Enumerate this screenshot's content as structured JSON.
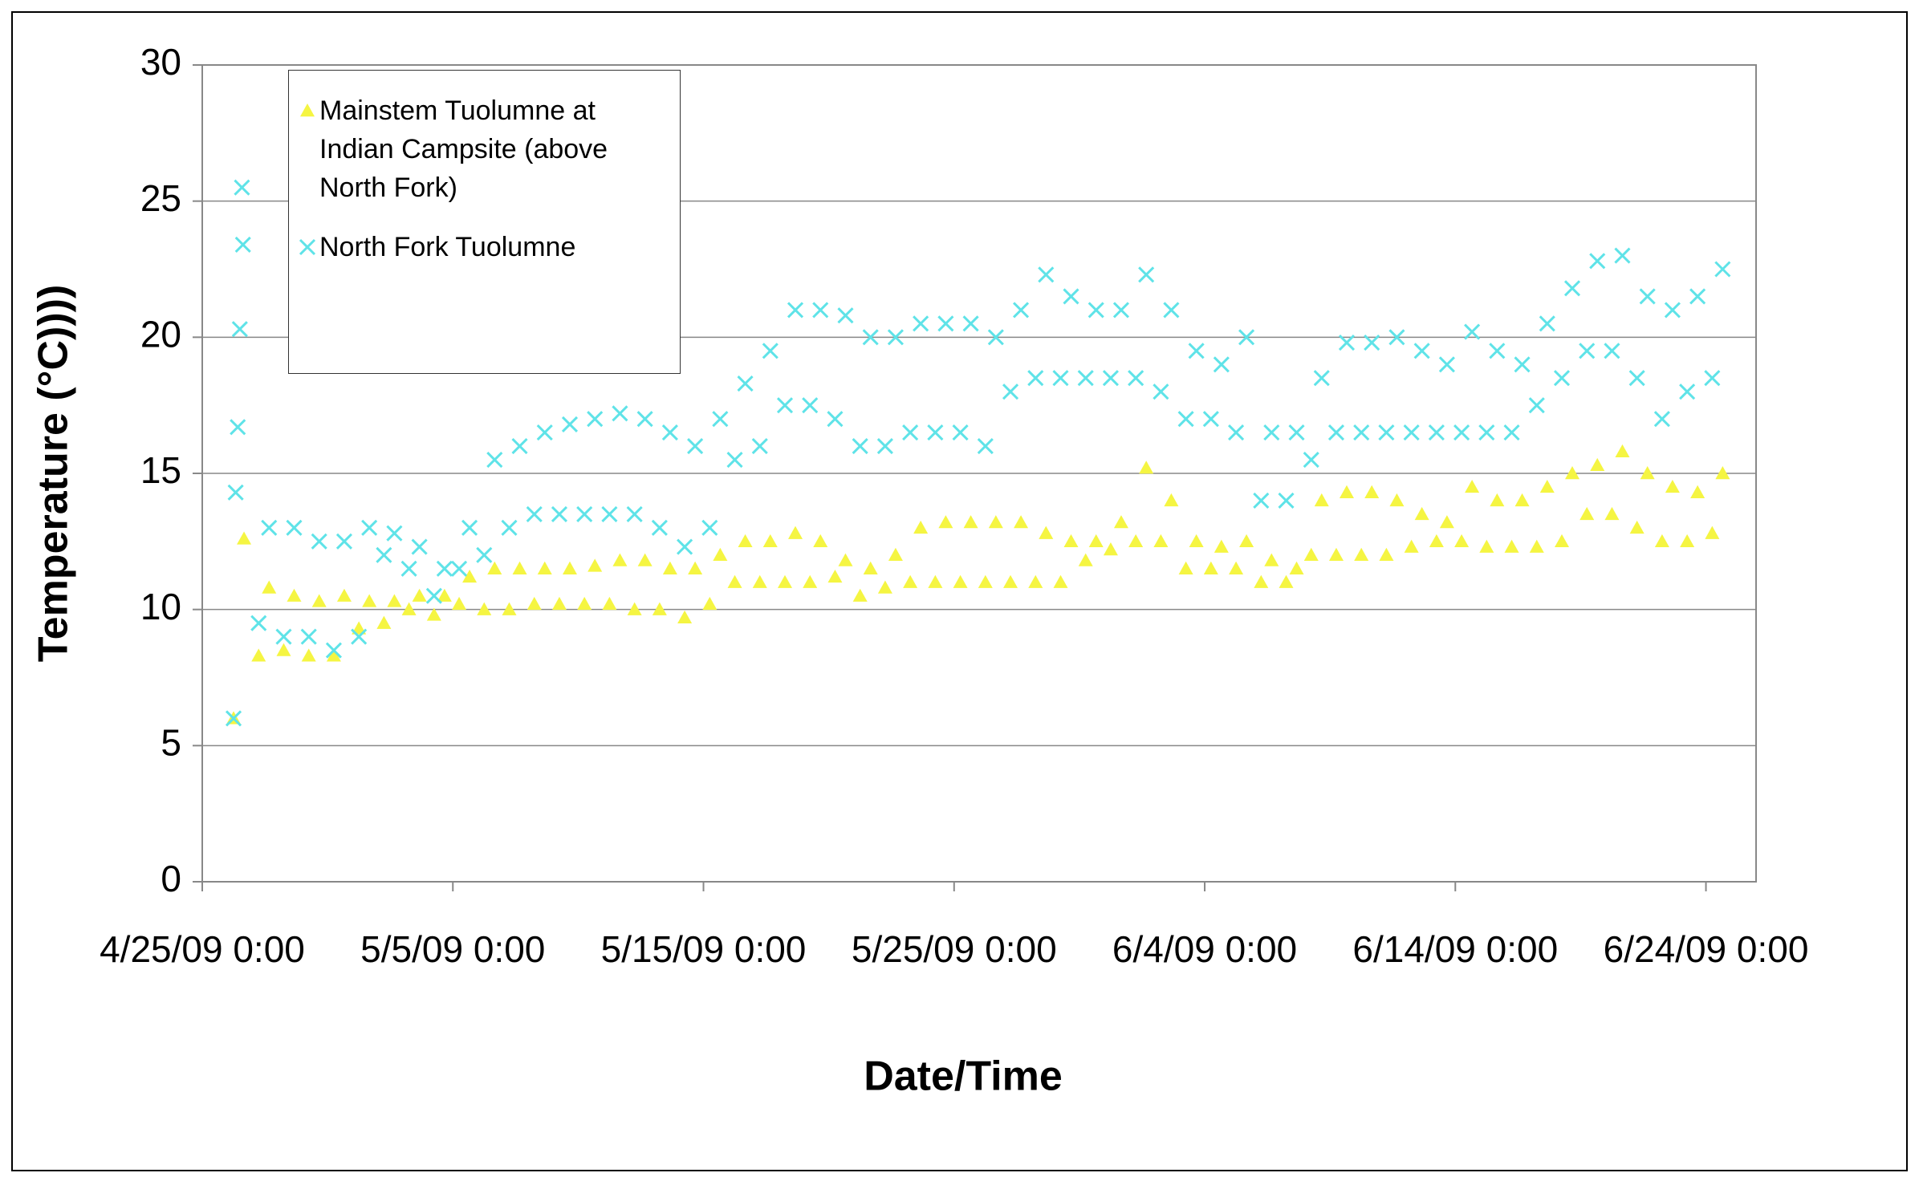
{
  "chart_data": {
    "type": "scatter",
    "xlabel": "Date/Time",
    "ylabel": "Temperature (°C))))",
    "xlim": [
      "4/25/09 0:00",
      "6/26/09 0:00"
    ],
    "xticks": [
      "4/25/09 0:00",
      "5/5/09 0:00",
      "5/15/09 0:00",
      "5/25/09 0:00",
      "6/4/09 0:00",
      "6/14/09 0:00",
      "6/24/09 0:00"
    ],
    "ylim": [
      0,
      30
    ],
    "yticks": [
      0,
      5,
      10,
      15,
      20,
      25,
      30
    ],
    "grid": true,
    "legend": "upper left",
    "series": [
      {
        "name": "Mainstem Tuolumne at Indian Campsite (above North Fork)",
        "color": "#f5f542",
        "marker": "triangle",
        "x": [
          "4/26/09 6:00",
          "4/26/09 16:00",
          "4/27/09 6:00",
          "4/27/09 16:00",
          "4/28/09 6:00",
          "4/28/09 16:00",
          "4/29/09 6:00",
          "4/29/09 16:00",
          "4/30/09 6:00",
          "4/30/09 16:00",
          "5/1/09 6:00",
          "5/1/09 16:00",
          "5/2/09 6:00",
          "5/2/09 16:00",
          "5/3/09 6:00",
          "5/3/09 16:00",
          "5/4/09 6:00",
          "5/4/09 16:00",
          "5/5/09 6:00",
          "5/5/09 16:00",
          "5/6/09 6:00",
          "5/6/09 16:00",
          "5/7/09 6:00",
          "5/7/09 16:00",
          "5/8/09 6:00",
          "5/8/09 16:00",
          "5/9/09 6:00",
          "5/9/09 16:00",
          "5/10/09 6:00",
          "5/10/09 16:00",
          "5/11/09 6:00",
          "5/11/09 16:00",
          "5/12/09 6:00",
          "5/12/09 16:00",
          "5/13/09 6:00",
          "5/13/09 16:00",
          "5/14/09 6:00",
          "5/14/09 16:00",
          "5/15/09 6:00",
          "5/15/09 16:00",
          "5/16/09 6:00",
          "5/16/09 16:00",
          "5/17/09 6:00",
          "5/17/09 16:00",
          "5/18/09 6:00",
          "5/18/09 16:00",
          "5/19/09 6:00",
          "5/19/09 16:00",
          "5/20/09 6:00",
          "5/20/09 16:00",
          "5/21/09 6:00",
          "5/21/09 16:00",
          "5/22/09 6:00",
          "5/22/09 16:00",
          "5/23/09 6:00",
          "5/23/09 16:00",
          "5/24/09 6:00",
          "5/24/09 16:00",
          "5/25/09 6:00",
          "5/25/09 16:00",
          "5/26/09 6:00",
          "5/26/09 16:00",
          "5/27/09 6:00",
          "5/27/09 16:00",
          "5/28/09 6:00",
          "5/28/09 16:00",
          "5/29/09 6:00",
          "5/29/09 16:00",
          "5/30/09 6:00",
          "5/30/09 16:00",
          "5/31/09 6:00",
          "5/31/09 16:00",
          "6/1/09 6:00",
          "6/1/09 16:00",
          "6/2/09 6:00",
          "6/2/09 16:00",
          "6/3/09 6:00",
          "6/3/09 16:00",
          "6/4/09 6:00",
          "6/4/09 16:00",
          "6/5/09 6:00",
          "6/5/09 16:00",
          "6/6/09 6:00",
          "6/6/09 16:00",
          "6/7/09 6:00",
          "6/7/09 16:00",
          "6/8/09 6:00",
          "6/8/09 16:00",
          "6/9/09 6:00",
          "6/9/09 16:00",
          "6/10/09 6:00",
          "6/10/09 16:00",
          "6/11/09 6:00",
          "6/11/09 16:00",
          "6/12/09 6:00",
          "6/12/09 16:00",
          "6/13/09 6:00",
          "6/13/09 16:00",
          "6/14/09 6:00",
          "6/14/09 16:00",
          "6/15/09 6:00",
          "6/15/09 16:00",
          "6/16/09 6:00",
          "6/16/09 16:00",
          "6/17/09 6:00",
          "6/17/09 16:00",
          "6/18/09 6:00",
          "6/18/09 16:00",
          "6/19/09 6:00",
          "6/19/09 16:00",
          "6/20/09 6:00",
          "6/20/09 16:00",
          "6/21/09 6:00",
          "6/21/09 16:00",
          "6/22/09 6:00",
          "6/22/09 16:00",
          "6/23/09 6:00",
          "6/23/09 16:00",
          "6/24/09 6:00",
          "6/24/09 16:00"
        ],
        "values": [
          6,
          12.6,
          8.3,
          10.8,
          8.5,
          10.5,
          8.3,
          10.3,
          8.3,
          10.5,
          9.3,
          10.3,
          9.5,
          10.3,
          10,
          10.5,
          9.8,
          10.5,
          10.2,
          11.2,
          10,
          11.5,
          10,
          11.5,
          10.2,
          11.5,
          10.2,
          11.5,
          10.2,
          11.6,
          10.2,
          11.8,
          10,
          11.8,
          10,
          11.5,
          9.7,
          11.5,
          10.2,
          12,
          11,
          12.5,
          11,
          12.5,
          11,
          12.8,
          11,
          12.5,
          11.2,
          11.8,
          10.5,
          11.5,
          10.8,
          12,
          11,
          13,
          11,
          13.2,
          11,
          13.2,
          11,
          13.2,
          11,
          13.2,
          11,
          12.8,
          11,
          12.5,
          11.8,
          12.5,
          12.2,
          13.2,
          12.5,
          15.2,
          12.5,
          14,
          11.5,
          12.5,
          11.5,
          12.3,
          11.5,
          12.5,
          11,
          11.8,
          11,
          11.5,
          12,
          14,
          12,
          14.3,
          12,
          14.3,
          12,
          14,
          12.3,
          13.5,
          12.5,
          13.2,
          12.5,
          14.5,
          12.3,
          14,
          12.3,
          14,
          12.3,
          14.5,
          12.5,
          15,
          13.5,
          15.3,
          13.5,
          15.8,
          13,
          15,
          12.5,
          14.5,
          12.5,
          14.3,
          12.8,
          15
        ]
      },
      {
        "name": "North Fork Tuolumne",
        "color": "#5fe3e8",
        "marker": "x",
        "x": [
          "4/26/09 6:00",
          "4/26/09 8:00",
          "4/26/09 10:00",
          "4/26/09 12:00",
          "4/26/09 14:00",
          "4/26/09 15:00",
          "4/27/09 6:00",
          "4/27/09 16:00",
          "4/28/09 6:00",
          "4/28/09 16:00",
          "4/29/09 6:00",
          "4/29/09 16:00",
          "4/30/09 6:00",
          "4/30/09 16:00",
          "5/1/09 6:00",
          "5/1/09 16:00",
          "5/2/09 6:00",
          "5/2/09 16:00",
          "5/3/09 6:00",
          "5/3/09 16:00",
          "5/4/09 6:00",
          "5/4/09 16:00",
          "5/5/09 6:00",
          "5/5/09 16:00",
          "5/6/09 6:00",
          "5/6/09 16:00",
          "5/7/09 6:00",
          "5/7/09 16:00",
          "5/8/09 6:00",
          "5/8/09 16:00",
          "5/9/09 6:00",
          "5/9/09 16:00",
          "5/10/09 6:00",
          "5/10/09 16:00",
          "5/11/09 6:00",
          "5/11/09 16:00",
          "5/12/09 6:00",
          "5/12/09 16:00",
          "5/13/09 6:00",
          "5/13/09 16:00",
          "5/14/09 6:00",
          "5/14/09 16:00",
          "5/15/09 6:00",
          "5/15/09 16:00",
          "5/16/09 6:00",
          "5/16/09 16:00",
          "5/17/09 6:00",
          "5/17/09 16:00",
          "5/18/09 6:00",
          "5/18/09 16:00",
          "5/19/09 6:00",
          "5/19/09 16:00",
          "5/20/09 6:00",
          "5/20/09 16:00",
          "5/21/09 6:00",
          "5/21/09 16:00",
          "5/22/09 6:00",
          "5/22/09 16:00",
          "5/23/09 6:00",
          "5/23/09 16:00",
          "5/24/09 6:00",
          "5/24/09 16:00",
          "5/25/09 6:00",
          "5/25/09 16:00",
          "5/26/09 6:00",
          "5/26/09 16:00",
          "5/27/09 6:00",
          "5/27/09 16:00",
          "5/28/09 6:00",
          "5/28/09 16:00",
          "5/29/09 6:00",
          "5/29/09 16:00",
          "5/30/09 6:00",
          "5/30/09 16:00",
          "5/31/09 6:00",
          "5/31/09 16:00",
          "6/1/09 6:00",
          "6/1/09 16:00",
          "6/2/09 6:00",
          "6/2/09 16:00",
          "6/3/09 6:00",
          "6/3/09 16:00",
          "6/4/09 6:00",
          "6/4/09 16:00",
          "6/5/09 6:00",
          "6/5/09 16:00",
          "6/6/09 6:00",
          "6/6/09 16:00",
          "6/7/09 6:00",
          "6/7/09 16:00",
          "6/8/09 6:00",
          "6/8/09 16:00",
          "6/9/09 6:00",
          "6/9/09 16:00",
          "6/10/09 6:00",
          "6/10/09 16:00",
          "6/11/09 6:00",
          "6/11/09 16:00",
          "6/12/09 6:00",
          "6/12/09 16:00",
          "6/13/09 6:00",
          "6/13/09 16:00",
          "6/14/09 6:00",
          "6/14/09 16:00",
          "6/15/09 6:00",
          "6/15/09 16:00",
          "6/16/09 6:00",
          "6/16/09 16:00",
          "6/17/09 6:00",
          "6/17/09 16:00",
          "6/18/09 6:00",
          "6/18/09 16:00",
          "6/19/09 6:00",
          "6/19/09 16:00",
          "6/20/09 6:00",
          "6/20/09 16:00",
          "6/21/09 6:00",
          "6/21/09 16:00",
          "6/22/09 6:00",
          "6/22/09 16:00",
          "6/23/09 6:00",
          "6/23/09 16:00",
          "6/24/09 6:00",
          "6/24/09 16:00"
        ],
        "values": [
          6,
          14.3,
          16.7,
          20.3,
          25.5,
          23.4,
          9.5,
          13,
          9,
          13,
          9,
          12.5,
          8.5,
          12.5,
          9,
          13,
          12,
          12.8,
          11.5,
          12.3,
          10.5,
          11.5,
          11.5,
          13,
          12,
          15.5,
          13,
          16,
          13.5,
          16.5,
          13.5,
          16.8,
          13.5,
          17,
          13.5,
          17.2,
          13.5,
          17,
          13,
          16.5,
          12.3,
          16,
          13,
          17,
          15.5,
          18.3,
          16,
          19.5,
          17.5,
          21,
          17.5,
          21,
          17,
          20.8,
          16,
          20,
          16,
          20,
          16.5,
          20.5,
          16.5,
          20.5,
          16.5,
          20.5,
          16,
          20,
          18,
          21,
          18.5,
          22.3,
          18.5,
          21.5,
          18.5,
          21,
          18.5,
          21,
          18.5,
          22.3,
          18,
          21,
          17,
          19.5,
          17,
          19,
          16.5,
          20,
          14,
          16.5,
          14,
          16.5,
          15.5,
          18.5,
          16.5,
          19.8,
          16.5,
          19.8,
          16.5,
          20,
          16.5,
          19.5,
          16.5,
          19,
          16.5,
          20.2,
          16.5,
          19.5,
          16.5,
          19,
          17.5,
          20.5,
          18.5,
          21.8,
          19.5,
          22.8,
          19.5,
          23,
          18.5,
          21.5,
          17,
          21,
          18,
          21.5,
          18.5,
          22.5
        ]
      }
    ]
  }
}
